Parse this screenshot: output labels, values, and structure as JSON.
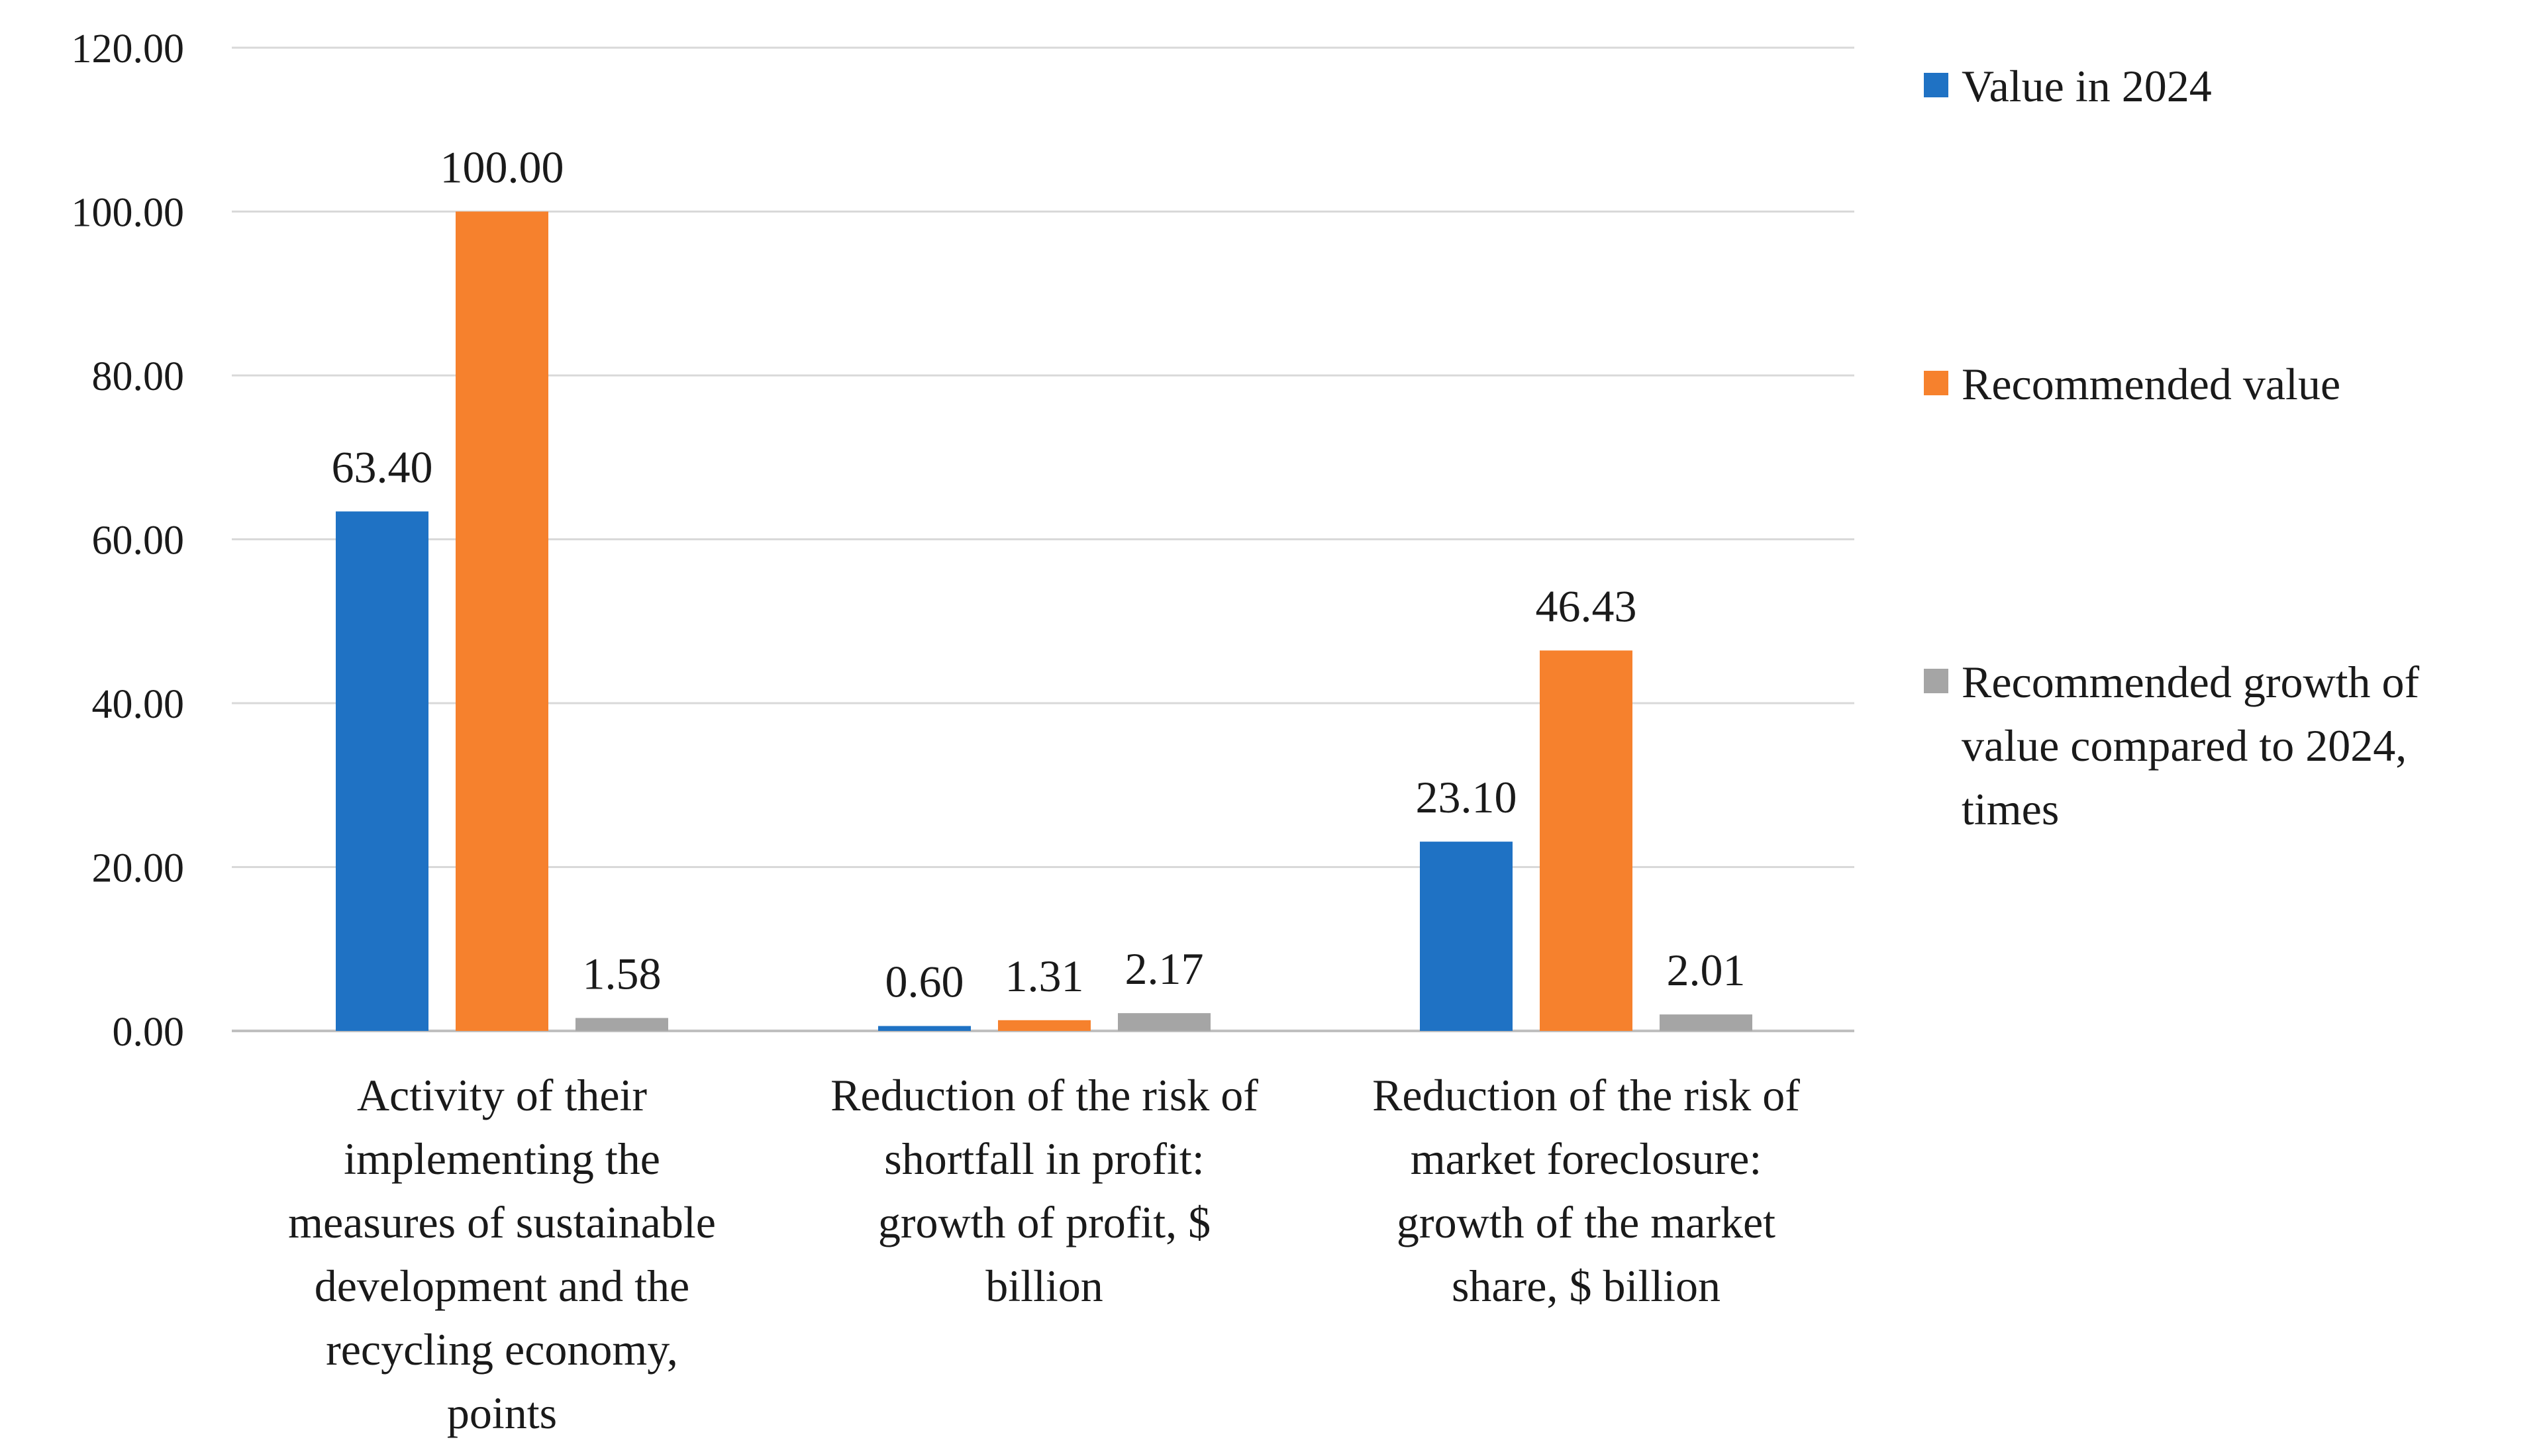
{
  "chart_data": {
    "type": "bar",
    "title": "",
    "xlabel": "",
    "ylabel": "",
    "ylim": [
      0,
      120
    ],
    "yticks": [
      "0.00",
      "20.00",
      "40.00",
      "60.00",
      "80.00",
      "100.00",
      "120.00"
    ],
    "grid": true,
    "legend_position": "right",
    "categories": [
      [
        "Activity of their",
        "implementing the",
        "measures of sustainable",
        "development and the",
        "recycling economy,",
        "points"
      ],
      [
        "Reduction of the risk of",
        "shortfall in profit:",
        "growth of profit, $",
        "billion"
      ],
      [
        "Reduction of the risk of",
        "market foreclosure:",
        "growth of the market",
        "share, $ billion"
      ]
    ],
    "series": [
      {
        "name": [
          "Value in 2024"
        ],
        "color": "#1f72c4",
        "values": [
          63.4,
          0.6,
          23.1
        ],
        "labels": [
          "63.40",
          "0.60",
          "23.10"
        ]
      },
      {
        "name": [
          "Recommended value"
        ],
        "color": "#f6812d",
        "values": [
          100.0,
          1.31,
          46.43
        ],
        "labels": [
          "100.00",
          "1.31",
          "46.43"
        ]
      },
      {
        "name": [
          "Recommended growth of",
          "value compared to 2024,",
          "times"
        ],
        "color": "#a5a5a5",
        "values": [
          1.58,
          2.17,
          2.01
        ],
        "labels": [
          "1.58",
          "2.17",
          "2.01"
        ]
      }
    ]
  }
}
